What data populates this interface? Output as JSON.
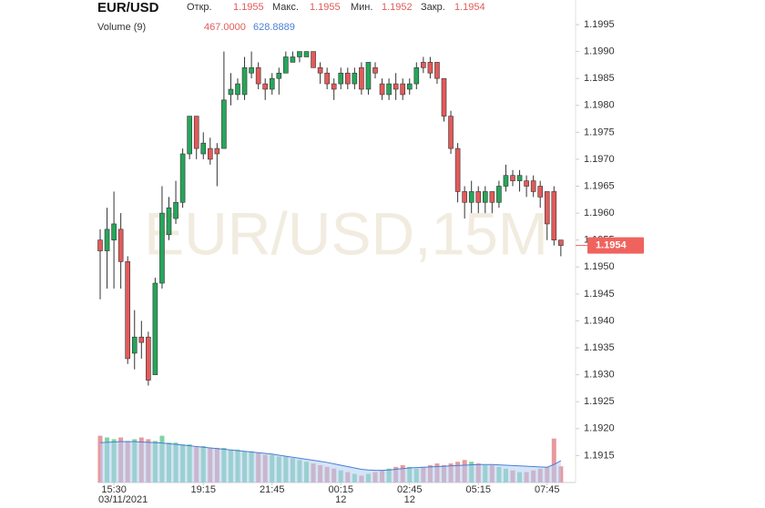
{
  "chart_data": {
    "type": "candlestick",
    "title": "EUR/USD",
    "watermark": "EUR/USD,15M",
    "ohlc_labels": {
      "open": "Откр.",
      "high": "Макс.",
      "low": "Мин.",
      "close": "Закр."
    },
    "volume_title": "Volume (9)",
    "volume_label": "467.0000",
    "volume_ma_label": "628.8889",
    "up_color": "#26a65b",
    "down_color": "#e35a5a",
    "volume_up_color": "#7fd3a4",
    "volume_down_color": "#e79a9e",
    "ma_color": "#4a7fd4",
    "ma_fill": "#b3cdf2",
    "grid": false,
    "categories": [
      null,
      null,
      "15:30",
      null,
      null,
      null,
      null,
      null,
      null,
      null,
      null,
      null,
      null,
      null,
      null,
      "19:15",
      null,
      null,
      null,
      null,
      null,
      null,
      null,
      null,
      null,
      "21:45",
      null,
      null,
      null,
      null,
      null,
      null,
      null,
      null,
      null,
      "00:15",
      null,
      null,
      null,
      null,
      null,
      null,
      null,
      null,
      null,
      "02:45",
      null,
      null,
      null,
      null,
      null,
      null,
      null,
      null,
      null,
      "05:15",
      null,
      null,
      null,
      null,
      null,
      null,
      null,
      null,
      null,
      "07:45",
      null,
      null
    ],
    "subcategories": [
      null,
      null,
      "03/11/2021",
      null,
      null,
      null,
      null,
      null,
      null,
      null,
      null,
      null,
      null,
      null,
      null,
      null,
      null,
      null,
      null,
      null,
      null,
      null,
      null,
      null,
      null,
      null,
      null,
      null,
      null,
      null,
      null,
      null,
      null,
      null,
      null,
      "12",
      null,
      null,
      null,
      null,
      null,
      null,
      null,
      null,
      null,
      "12",
      null,
      null,
      null,
      null,
      null,
      null,
      null,
      null,
      null,
      null,
      null,
      null,
      null,
      null,
      null,
      null,
      null,
      null,
      null,
      null,
      null,
      null
    ],
    "open": [
      1.1955,
      1.1953,
      1.1955,
      1.1957,
      1.1951,
      1.1934,
      1.1937,
      1.1937,
      1.193,
      1.1947,
      1.1956,
      1.1959,
      1.1962,
      1.1971,
      1.1978,
      1.1971,
      1.1972,
      1.1972,
      1.1972,
      1.1982,
      1.1982,
      1.1982,
      1.1986,
      1.1987,
      1.1984,
      1.1983,
      1.1985,
      1.1986,
      1.1988,
      1.1989,
      1.1989,
      1.199,
      1.1987,
      1.1986,
      1.1984,
      1.1984,
      1.1986,
      1.1984,
      1.1987,
      1.1983,
      1.1987,
      1.1984,
      1.1982,
      1.1984,
      1.1984,
      1.1983,
      1.1984,
      1.1988,
      1.1988,
      1.1988,
      1.1985,
      1.1978,
      1.1972,
      1.1964,
      1.1962,
      1.1964,
      1.1962,
      1.1964,
      1.1962,
      1.1965,
      1.1967,
      1.1966,
      1.1966,
      1.1966,
      1.1965,
      1.1964,
      1.1964,
      1.1955
    ],
    "high": [
      1.1957,
      1.1961,
      1.1964,
      1.196,
      1.1952,
      1.1942,
      1.194,
      1.1938,
      1.1948,
      1.1965,
      1.1963,
      1.1966,
      1.1972,
      1.1978,
      1.1978,
      1.1975,
      1.1974,
      1.1973,
      1.199,
      1.1986,
      1.1985,
      1.1989,
      1.199,
      1.1988,
      1.1985,
      1.1986,
      1.1987,
      1.199,
      1.199,
      1.199,
      1.199,
      1.199,
      1.1988,
      1.1987,
      1.1985,
      1.1987,
      1.1987,
      1.1987,
      1.1988,
      1.1988,
      1.1988,
      1.1985,
      1.1985,
      1.1986,
      1.1985,
      1.1985,
      1.1988,
      1.1989,
      1.1989,
      1.1988,
      1.1985,
      1.1979,
      1.1973,
      1.1965,
      1.1966,
      1.1965,
      1.1965,
      1.1964,
      1.1966,
      1.1969,
      1.1968,
      1.1968,
      1.1967,
      1.1967,
      1.1966,
      1.1964,
      1.1965,
      1.1955
    ],
    "low": [
      1.1944,
      1.1946,
      1.1946,
      1.1946,
      1.1932,
      1.1931,
      1.1933,
      1.1928,
      1.193,
      1.1946,
      1.1955,
      1.1958,
      1.1961,
      1.197,
      1.197,
      1.197,
      1.1969,
      1.1965,
      1.1972,
      1.198,
      1.1981,
      1.1981,
      1.1985,
      1.1983,
      1.1981,
      1.1982,
      1.1982,
      1.1986,
      1.1988,
      1.1988,
      1.1989,
      1.1987,
      1.1984,
      1.1983,
      1.1981,
      1.1983,
      1.1983,
      1.1983,
      1.1982,
      1.1982,
      1.1985,
      1.1981,
      1.1981,
      1.1981,
      1.1981,
      1.1982,
      1.1983,
      1.1986,
      1.1985,
      1.1984,
      1.1977,
      1.1971,
      1.1962,
      1.1959,
      1.196,
      1.196,
      1.196,
      1.196,
      1.1961,
      1.1964,
      1.1965,
      1.1964,
      1.1963,
      1.1963,
      1.1961,
      1.1955,
      1.1954,
      1.1952
    ],
    "close": [
      1.1953,
      1.1957,
      1.1958,
      1.1951,
      1.1933,
      1.1937,
      1.1936,
      1.1929,
      1.1947,
      1.196,
      1.1961,
      1.1962,
      1.1971,
      1.1978,
      1.1972,
      1.1973,
      1.197,
      1.1971,
      1.1981,
      1.1983,
      1.1984,
      1.1987,
      1.1987,
      1.1984,
      1.1983,
      1.1985,
      1.1986,
      1.1989,
      1.1989,
      1.199,
      1.199,
      1.1987,
      1.1986,
      1.1984,
      1.1983,
      1.1986,
      1.1984,
      1.1986,
      1.1983,
      1.1988,
      1.1986,
      1.1982,
      1.1984,
      1.1983,
      1.1982,
      1.1984,
      1.1987,
      1.1987,
      1.1986,
      1.1985,
      1.1978,
      1.1972,
      1.1964,
      1.1962,
      1.1964,
      1.1962,
      1.1964,
      1.1962,
      1.1965,
      1.1967,
      1.1966,
      1.1967,
      1.1965,
      1.1964,
      1.1963,
      1.1958,
      1.1955,
      1.1954
    ],
    "volume": [
      1350,
      1300,
      1250,
      1300,
      1200,
      1250,
      1300,
      1250,
      1200,
      1350,
      1150,
      1150,
      1100,
      1100,
      1050,
      1050,
      1000,
      1000,
      1000,
      950,
      950,
      900,
      900,
      850,
      800,
      800,
      750,
      750,
      700,
      650,
      600,
      550,
      500,
      450,
      400,
      350,
      300,
      250,
      200,
      250,
      300,
      350,
      400,
      450,
      500,
      450,
      400,
      450,
      500,
      550,
      500,
      550,
      600,
      650,
      600,
      550,
      500,
      500,
      450,
      400,
      350,
      300,
      300,
      350,
      400,
      450,
      1270,
      467
    ],
    "volume_ma": [
      1150,
      1160,
      1170,
      1180,
      1180,
      1180,
      1170,
      1160,
      1150,
      1140,
      1120,
      1100,
      1080,
      1060,
      1040,
      1020,
      1000,
      980,
      960,
      940,
      920,
      900,
      880,
      860,
      840,
      820,
      790,
      760,
      730,
      700,
      670,
      640,
      610,
      580,
      540,
      500,
      460,
      420,
      380,
      360,
      350,
      350,
      360,
      380,
      400,
      420,
      430,
      440,
      450,
      460,
      470,
      480,
      490,
      500,
      510,
      520,
      520,
      520,
      510,
      500,
      490,
      480,
      470,
      460,
      450,
      440,
      520,
      628.8889
    ],
    "ylim": [
      1.191,
      1.2
    ],
    "yticks": [
      1.1915,
      {
        "value": 1.192,
        "label": "1.1920"
      },
      1.1925,
      {
        "value": 1.193,
        "label": "1.1930"
      },
      1.1935,
      {
        "value": 1.194,
        "label": "1.1940"
      },
      1.1945,
      {
        "value": 1.195,
        "label": "1.1950"
      },
      1.1955,
      {
        "value": 1.196,
        "label": "1.1960"
      },
      1.1965,
      {
        "value": 1.197,
        "label": "1.1970"
      },
      1.1975,
      {
        "value": 1.198,
        "label": "1.1980"
      },
      1.1985,
      {
        "value": 1.199,
        "label": "1.1990"
      },
      1.1995
    ],
    "y2lim": [
      0,
      14000
    ]
  }
}
